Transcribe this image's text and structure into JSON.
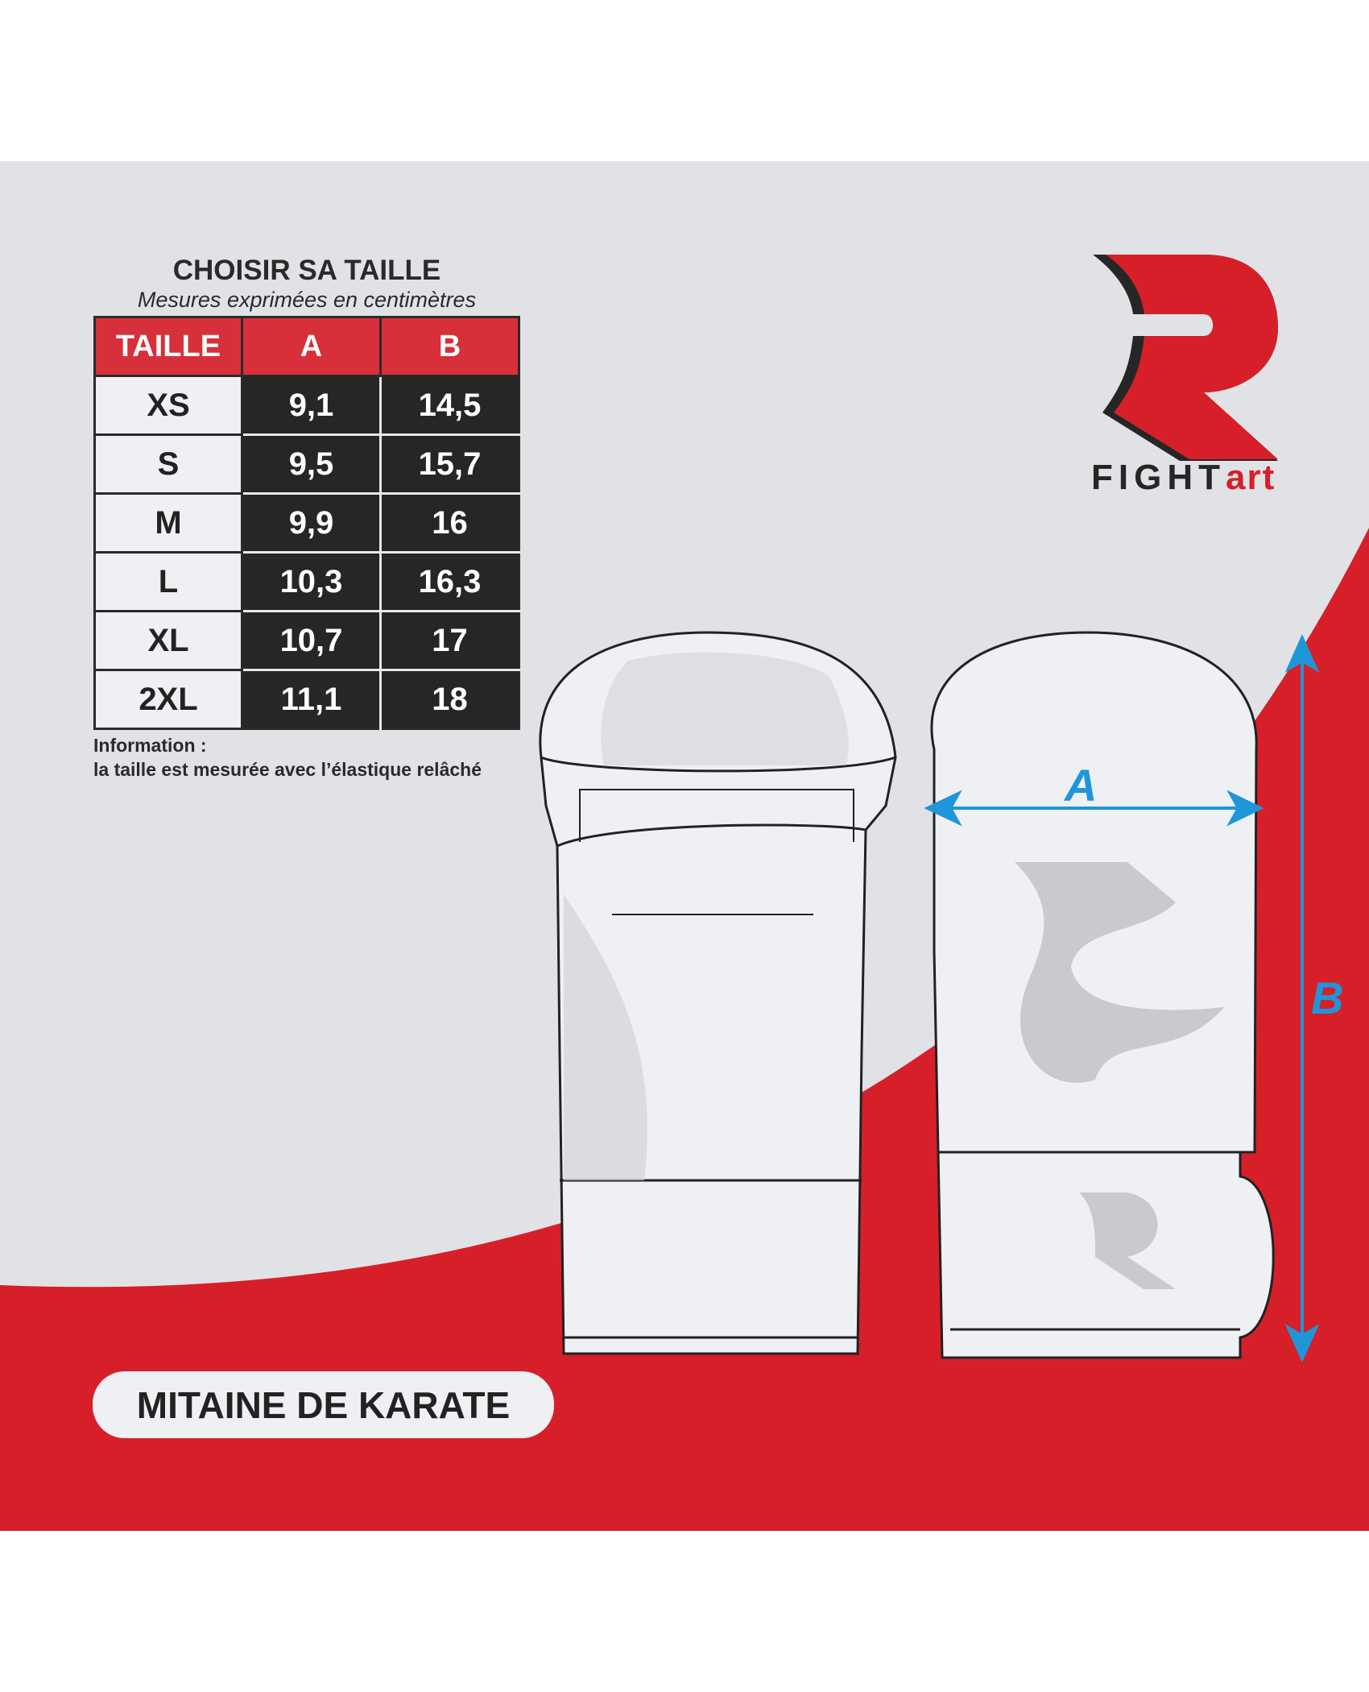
{
  "chart_data": {
    "type": "table",
    "title": "CHOISIR SA TAILLE",
    "subtitle": "Mesures exprimées en centimètres",
    "columns": [
      "TAILLE",
      "A",
      "B"
    ],
    "rows": [
      [
        "XS",
        "9,1",
        "14,5"
      ],
      [
        "S",
        "9,5",
        "15,7"
      ],
      [
        "M",
        "9,9",
        "16"
      ],
      [
        "L",
        "10,3",
        "16,3"
      ],
      [
        "XL",
        "10,7",
        "17"
      ],
      [
        "2XL",
        "11,1",
        "18"
      ]
    ]
  },
  "info": {
    "label": "Information :",
    "text": "la taille est mesurée avec l’élastique relâché"
  },
  "product_name": "MITAINE DE KARATE",
  "dimension_labels": {
    "a": "A",
    "b": "B"
  },
  "logo": {
    "word_dark": "FIGHT",
    "word_red": "art"
  },
  "colors": {
    "red": "#d71f2a",
    "gray_bg": "#e1e2e6",
    "table_dark": "#262626",
    "arrow_blue": "#1e96d8"
  }
}
